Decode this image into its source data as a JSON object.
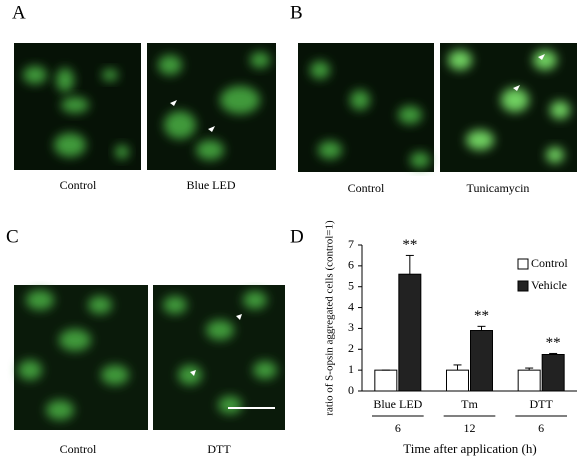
{
  "panels": {
    "letters": [
      "A",
      "B",
      "C",
      "D"
    ],
    "captions": {
      "a": [
        "Control",
        "Blue LED"
      ],
      "b": [
        "Control",
        "Tunicamycin"
      ],
      "c": [
        "Control",
        "DTT"
      ]
    }
  },
  "chart_data": {
    "type": "bar",
    "ylabel": "ratio of S-opsin aggregated cells (control=1)",
    "categories": [
      "Blue LED",
      "Tm",
      "DTT"
    ],
    "series": [
      {
        "name": "Control",
        "color": "#ffffff",
        "values": [
          1,
          1,
          1
        ],
        "errors": [
          0,
          0.25,
          0.1
        ]
      },
      {
        "name": "Vehicle",
        "color": "#222222",
        "values": [
          5.6,
          2.9,
          1.75
        ],
        "errors": [
          0.9,
          0.2,
          0.05
        ]
      }
    ],
    "annotations": [
      "**",
      "**",
      "**"
    ],
    "times": [
      "6",
      "12",
      "6"
    ],
    "xlabel": "Time after application (h)",
    "ylim": [
      0,
      7
    ],
    "yticks": [
      0,
      1,
      2,
      3,
      4,
      5,
      6,
      7
    ],
    "legend": "upper right"
  }
}
